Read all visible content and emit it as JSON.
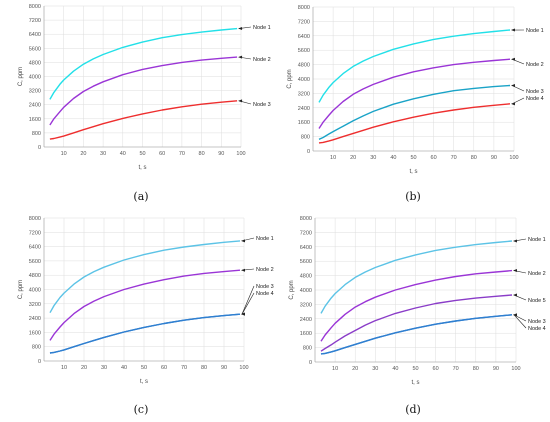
{
  "chart_data": [
    {
      "type": "line",
      "caption": "(a)",
      "xlabel": "t, s",
      "ylabel": "C, ppm",
      "xlim": [
        0,
        100
      ],
      "ylim": [
        0,
        8000
      ],
      "xticks": [
        "10",
        "20",
        "30",
        "40",
        "50",
        "60",
        "70",
        "80",
        "90",
        "100"
      ],
      "yticks": [
        "0",
        "800",
        "1600",
        "2400",
        "3200",
        "4000",
        "4800",
        "5600",
        "6400",
        "7200",
        "8000"
      ],
      "grid": true,
      "x": [
        3,
        5,
        8,
        10,
        15,
        20,
        25,
        30,
        40,
        50,
        60,
        70,
        80,
        90,
        98
      ],
      "series": [
        {
          "name": "Node 1",
          "color": "#22e0e8",
          "values": [
            2700,
            3100,
            3550,
            3800,
            4300,
            4700,
            5000,
            5250,
            5650,
            5950,
            6200,
            6380,
            6520,
            6640,
            6720
          ]
        },
        {
          "name": "Node 2",
          "color": "#9a35d6",
          "values": [
            1250,
            1600,
            2000,
            2250,
            2750,
            3150,
            3450,
            3700,
            4100,
            4400,
            4620,
            4800,
            4930,
            5030,
            5100
          ]
        },
        {
          "name": "Node 3",
          "color": "#ee2e2e",
          "values": [
            450,
            480,
            560,
            620,
            800,
            980,
            1150,
            1320,
            1620,
            1880,
            2100,
            2280,
            2430,
            2540,
            2620
          ]
        }
      ]
    },
    {
      "type": "line",
      "caption": "(b)",
      "xlabel": "t, s",
      "ylabel": "C, ppm",
      "xlim": [
        0,
        100
      ],
      "ylim": [
        0,
        8000
      ],
      "xticks": [
        "10",
        "20",
        "30",
        "40",
        "50",
        "60",
        "70",
        "80",
        "90",
        "100"
      ],
      "yticks": [
        "0",
        "800",
        "1600",
        "2400",
        "3200",
        "4000",
        "4800",
        "5600",
        "6400",
        "7200",
        "8000"
      ],
      "grid": true,
      "x": [
        3,
        5,
        8,
        10,
        15,
        20,
        25,
        30,
        40,
        50,
        60,
        70,
        80,
        90,
        98
      ],
      "series": [
        {
          "name": "Node 1",
          "color": "#22e0e8",
          "values": [
            2700,
            3100,
            3550,
            3800,
            4300,
            4700,
            5000,
            5250,
            5650,
            5950,
            6200,
            6380,
            6520,
            6640,
            6720
          ]
        },
        {
          "name": "Node 2",
          "color": "#9a35d6",
          "values": [
            1250,
            1600,
            2000,
            2250,
            2750,
            3150,
            3450,
            3700,
            4100,
            4400,
            4620,
            4800,
            4930,
            5030,
            5100
          ]
        },
        {
          "name": "Node 3",
          "color": "#1aa3c7",
          "values": [
            650,
            750,
            950,
            1080,
            1380,
            1680,
            1950,
            2200,
            2600,
            2900,
            3150,
            3350,
            3480,
            3580,
            3640
          ]
        },
        {
          "name": "Node 4",
          "color": "#ee2e2e",
          "values": [
            450,
            480,
            560,
            620,
            800,
            980,
            1150,
            1320,
            1620,
            1880,
            2100,
            2280,
            2430,
            2540,
            2620
          ]
        }
      ]
    },
    {
      "type": "line",
      "caption": "(c)",
      "xlabel": "t, s",
      "ylabel": "C, ppm",
      "xlim": [
        0,
        100
      ],
      "ylim": [
        0,
        8000
      ],
      "xticks": [
        "10",
        "20",
        "30",
        "40",
        "50",
        "60",
        "70",
        "80",
        "90",
        "100"
      ],
      "yticks": [
        "0",
        "800",
        "1600",
        "2400",
        "3200",
        "4000",
        "4800",
        "5600",
        "6400",
        "7200",
        "8000"
      ],
      "grid": true,
      "x": [
        3,
        5,
        8,
        10,
        15,
        20,
        25,
        30,
        40,
        50,
        60,
        70,
        80,
        90,
        98
      ],
      "series": [
        {
          "name": "Node 1",
          "color": "#5cc3e6",
          "values": [
            2700,
            3100,
            3550,
            3800,
            4300,
            4700,
            5000,
            5250,
            5650,
            5950,
            6200,
            6380,
            6520,
            6640,
            6720
          ]
        },
        {
          "name": "Node 2",
          "color": "#9a35d6",
          "values": [
            1150,
            1500,
            1900,
            2150,
            2650,
            3050,
            3350,
            3600,
            4000,
            4300,
            4550,
            4750,
            4900,
            5000,
            5080
          ]
        },
        {
          "name": "Node 3",
          "color": "#2f7fd0",
          "values": [
            450,
            480,
            560,
            620,
            800,
            980,
            1150,
            1320,
            1620,
            1880,
            2100,
            2280,
            2430,
            2540,
            2620
          ]
        },
        {
          "name": "Node 4",
          "color": "#2f7fd0",
          "values": [
            450,
            480,
            560,
            620,
            800,
            980,
            1150,
            1320,
            1620,
            1880,
            2100,
            2280,
            2430,
            2540,
            2620
          ]
        }
      ]
    },
    {
      "type": "line",
      "caption": "(d)",
      "xlabel": "t, s",
      "ylabel": "C, ppm",
      "xlim": [
        0,
        100
      ],
      "ylim": [
        0,
        8000
      ],
      "xticks": [
        "10",
        "20",
        "30",
        "40",
        "50",
        "60",
        "70",
        "80",
        "90",
        "100"
      ],
      "yticks": [
        "0",
        "800",
        "1600",
        "2400",
        "3200",
        "4000",
        "4800",
        "5600",
        "6400",
        "7200",
        "8000"
      ],
      "grid": true,
      "x": [
        3,
        5,
        8,
        10,
        15,
        20,
        25,
        30,
        40,
        50,
        60,
        70,
        80,
        90,
        98
      ],
      "series": [
        {
          "name": "Node 1",
          "color": "#5cc3e6",
          "values": [
            2700,
            3100,
            3550,
            3800,
            4300,
            4700,
            5000,
            5250,
            5650,
            5950,
            6200,
            6380,
            6520,
            6640,
            6720
          ]
        },
        {
          "name": "Node 2",
          "color": "#9a35d6",
          "values": [
            1150,
            1500,
            1900,
            2150,
            2650,
            3050,
            3350,
            3600,
            4000,
            4300,
            4550,
            4750,
            4900,
            5000,
            5080
          ]
        },
        {
          "name": "Node 5",
          "color": "#8a3cc8",
          "values": [
            600,
            750,
            950,
            1100,
            1450,
            1750,
            2050,
            2300,
            2700,
            3000,
            3250,
            3420,
            3550,
            3650,
            3720
          ]
        },
        {
          "name": "Node 3",
          "color": "#2f7fd0",
          "values": [
            450,
            480,
            560,
            620,
            800,
            980,
            1150,
            1320,
            1620,
            1880,
            2100,
            2280,
            2430,
            2540,
            2620
          ]
        },
        {
          "name": "Node 4",
          "color": "#2f7fd0",
          "values": [
            450,
            480,
            560,
            620,
            800,
            980,
            1150,
            1320,
            1620,
            1880,
            2100,
            2280,
            2430,
            2540,
            2620
          ]
        }
      ]
    }
  ]
}
